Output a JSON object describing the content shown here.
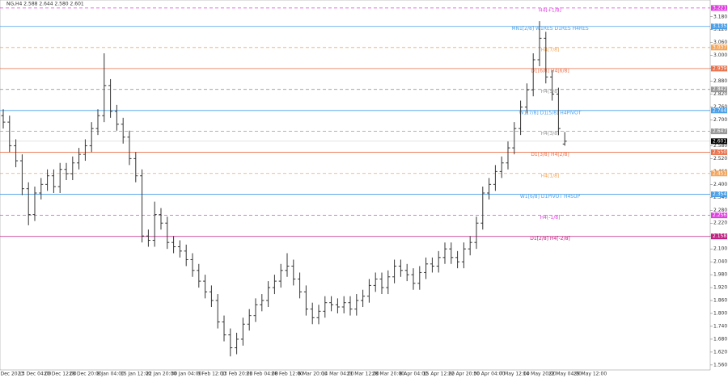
{
  "chart_data": {
    "type": "ohlc",
    "title": "NG,H4 2.588 2.644 2.580 2.601",
    "color": "#333333",
    "ylim": [
      1.537,
      3.258
    ],
    "yticks": [
      {
        "value": 1.56,
        "label": "1.560"
      },
      {
        "value": 1.62,
        "label": "1.620"
      },
      {
        "value": 1.68,
        "label": "1.680"
      },
      {
        "value": 1.74,
        "label": "1.740"
      },
      {
        "value": 1.8,
        "label": "1.800"
      },
      {
        "value": 1.86,
        "label": "1.860"
      },
      {
        "value": 1.92,
        "label": "1.920"
      },
      {
        "value": 1.98,
        "label": "1.980"
      },
      {
        "value": 2.04,
        "label": "2.040"
      },
      {
        "value": 2.1,
        "label": "2.100"
      },
      {
        "value": 2.16,
        "label": "2.160"
      },
      {
        "value": 2.22,
        "label": "2.220"
      },
      {
        "value": 2.28,
        "label": "2.280"
      },
      {
        "value": 2.34,
        "label": "2.340"
      },
      {
        "value": 2.4,
        "label": "2.400"
      },
      {
        "value": 2.46,
        "label": "2.460"
      },
      {
        "value": 2.52,
        "label": "2.520"
      },
      {
        "value": 2.58,
        "label": "2.580"
      },
      {
        "value": 2.64,
        "label": "2.640"
      },
      {
        "value": 2.7,
        "label": "2.700"
      },
      {
        "value": 2.76,
        "label": "2.760"
      },
      {
        "value": 2.82,
        "label": "2.820"
      },
      {
        "value": 2.88,
        "label": "2.880"
      },
      {
        "value": 2.94,
        "label": "2.940"
      },
      {
        "value": 3,
        "label": "3.000"
      },
      {
        "value": 3.06,
        "label": "3.060"
      },
      {
        "value": 3.12,
        "label": "3.120"
      },
      {
        "value": 3.18,
        "label": "3.180"
      }
    ],
    "x_labels": [
      "5 Dec 2023",
      "13 Dec 04:00",
      "20 Dec 12:00",
      "28 Dec 20:00",
      "8 Jan 04:00",
      "15 Jan 12:00",
      "22 Jan 20:00",
      "30 Jan 04:00",
      "6 Feb 12:00",
      "13 Feb 20:00",
      "21 Feb 04:00",
      "28 Feb 12:00",
      "6 Mar 20:00",
      "14 Mar 04:00",
      "21 Mar 12:00",
      "28 Mar 20:00",
      "8 Apr 04:00",
      "15 Apr 12:00",
      "22 Apr 20:00",
      "30 Apr 04:00",
      "7 May 12:00",
      "14 May 20:00",
      "22 May 04:00",
      "29 May 12:00"
    ],
    "open": [
      2.72,
      2.69,
      2.58,
      2.51,
      2.38,
      2.26,
      2.36,
      2.4,
      2.44,
      2.39,
      2.47,
      2.45,
      2.5,
      2.54,
      2.58,
      2.66,
      2.72,
      2.86,
      2.74,
      2.68,
      2.62,
      2.52,
      2.44,
      2.16,
      2.14,
      2.26,
      2.22,
      2.13,
      2.11,
      2.09,
      2.05,
      2.0,
      1.95,
      1.9,
      1.86,
      1.76,
      1.7,
      1.64,
      1.68,
      1.75,
      1.79,
      1.84,
      1.86,
      1.92,
      1.95,
      2.0,
      2.02,
      1.96,
      1.9,
      1.82,
      1.78,
      1.81,
      1.85,
      1.84,
      1.83,
      1.85,
      1.82,
      1.86,
      1.88,
      1.93,
      1.96,
      1.92,
      1.97,
      2.02,
      2.0,
      1.98,
      1.94,
      1.99,
      2.03,
      2.02,
      2.06,
      2.1,
      2.06,
      2.04,
      2.1,
      2.13,
      2.22,
      2.36,
      2.4,
      2.46,
      2.5,
      2.57,
      2.66,
      2.76,
      2.84,
      2.98,
      3.08,
      2.9,
      2.82,
      2.588
    ],
    "high": [
      2.75,
      2.72,
      2.61,
      2.54,
      2.41,
      2.39,
      2.43,
      2.47,
      2.47,
      2.5,
      2.5,
      2.53,
      2.57,
      2.61,
      2.69,
      2.75,
      3.01,
      2.89,
      2.77,
      2.71,
      2.65,
      2.55,
      2.47,
      2.19,
      2.32,
      2.29,
      2.25,
      2.16,
      2.14,
      2.12,
      2.08,
      2.03,
      1.98,
      1.93,
      1.89,
      1.79,
      1.73,
      1.71,
      1.78,
      1.82,
      1.87,
      1.89,
      1.95,
      1.98,
      2.03,
      2.08,
      2.05,
      1.99,
      1.93,
      1.85,
      1.84,
      1.88,
      1.88,
      1.87,
      1.88,
      1.88,
      1.89,
      1.91,
      1.96,
      1.99,
      1.99,
      2.0,
      2.05,
      2.05,
      2.03,
      2.01,
      2.02,
      2.06,
      2.06,
      2.09,
      2.13,
      2.13,
      2.09,
      2.13,
      2.16,
      2.25,
      2.39,
      2.43,
      2.49,
      2.53,
      2.6,
      2.69,
      2.79,
      2.87,
      3.01,
      3.16,
      3.11,
      2.93,
      2.85,
      2.644
    ],
    "low": [
      2.66,
      2.55,
      2.48,
      2.35,
      2.21,
      2.23,
      2.33,
      2.37,
      2.36,
      2.36,
      2.42,
      2.42,
      2.47,
      2.51,
      2.55,
      2.63,
      2.69,
      2.71,
      2.65,
      2.59,
      2.49,
      2.41,
      2.13,
      2.11,
      2.11,
      2.19,
      2.1,
      2.08,
      2.06,
      2.02,
      1.97,
      1.92,
      1.87,
      1.83,
      1.73,
      1.67,
      1.6,
      1.61,
      1.65,
      1.72,
      1.76,
      1.81,
      1.83,
      1.89,
      1.92,
      1.97,
      1.93,
      1.87,
      1.79,
      1.75,
      1.75,
      1.78,
      1.81,
      1.8,
      1.8,
      1.79,
      1.79,
      1.83,
      1.85,
      1.9,
      1.89,
      1.89,
      1.94,
      1.97,
      1.95,
      1.91,
      1.91,
      1.96,
      1.99,
      1.99,
      2.03,
      2.03,
      2.01,
      2.01,
      2.07,
      2.1,
      2.19,
      2.33,
      2.37,
      2.43,
      2.47,
      2.54,
      2.63,
      2.73,
      2.81,
      2.95,
      2.87,
      2.79,
      2.63,
      2.58
    ],
    "close": [
      2.69,
      2.58,
      2.51,
      2.38,
      2.26,
      2.36,
      2.4,
      2.44,
      2.39,
      2.47,
      2.45,
      2.5,
      2.54,
      2.58,
      2.66,
      2.72,
      2.86,
      2.74,
      2.68,
      2.62,
      2.52,
      2.44,
      2.16,
      2.14,
      2.26,
      2.22,
      2.13,
      2.11,
      2.09,
      2.05,
      2.0,
      1.95,
      1.9,
      1.86,
      1.76,
      1.7,
      1.64,
      1.68,
      1.75,
      1.79,
      1.84,
      1.86,
      1.92,
      1.95,
      2.0,
      2.02,
      1.96,
      1.9,
      1.82,
      1.78,
      1.81,
      1.85,
      1.84,
      1.83,
      1.85,
      1.82,
      1.86,
      1.88,
      1.93,
      1.96,
      1.92,
      1.97,
      2.02,
      2.0,
      1.98,
      1.94,
      1.99,
      2.03,
      2.02,
      2.06,
      2.1,
      2.06,
      2.04,
      2.1,
      2.13,
      2.22,
      2.36,
      2.4,
      2.46,
      2.5,
      2.57,
      2.66,
      2.76,
      2.84,
      2.98,
      3.08,
      2.9,
      2.82,
      2.66,
      2.601
    ],
    "levels": [
      {
        "name": "H4[+1/8]",
        "value": 3.221,
        "label": "3.221",
        "color": "#e040e0",
        "style": "dashed"
      },
      {
        "name": "MN1[2/8] W1RES D1RES H4RES",
        "value": 3.135,
        "label": "3.135",
        "color": "#4a9fe8",
        "style": "solid"
      },
      {
        "name": "H4[7/8]",
        "value": 3.037,
        "label": "3.037",
        "color": "#f5a55a",
        "style": "dashed"
      },
      {
        "name": "D1[6/8] H4[6/8]",
        "value": 2.939,
        "label": "2.939",
        "color": "#e8704a",
        "style": "solid"
      },
      {
        "name": "H4[5/8]",
        "value": 2.842,
        "label": "2.842",
        "color": "#999999",
        "style": "dashed"
      },
      {
        "name": "W1[7/8] D1[5/8] H4PIVOT",
        "value": 2.744,
        "label": "2.744",
        "color": "#4a9fe8",
        "style": "solid"
      },
      {
        "name": "H4[3/8]",
        "value": 2.647,
        "label": "2.647",
        "color": "#999999",
        "style": "dashed"
      },
      {
        "name": "D1[3/8] H4[2/8]",
        "value": 2.55,
        "label": "2.550",
        "color": "#e8704a",
        "style": "solid"
      },
      {
        "name": "H4[1/8]",
        "value": 2.451,
        "label": "2.451",
        "color": "#f5a55a",
        "style": "dashed"
      },
      {
        "name": "W1[6/8] D1PIVOT H4SUP",
        "value": 2.354,
        "label": "2.354",
        "color": "#4a9fe8",
        "style": "solid"
      },
      {
        "name": "H4[-1/8]",
        "value": 2.256,
        "label": "2.256",
        "color": "#e040e0",
        "style": "dashed"
      },
      {
        "name": "D1[2/8] H4[-2/8]",
        "value": 2.158,
        "label": "2.158",
        "color": "#c02080",
        "style": "solid"
      }
    ],
    "last_price": {
      "value": 2.601,
      "label": "2.601"
    }
  }
}
